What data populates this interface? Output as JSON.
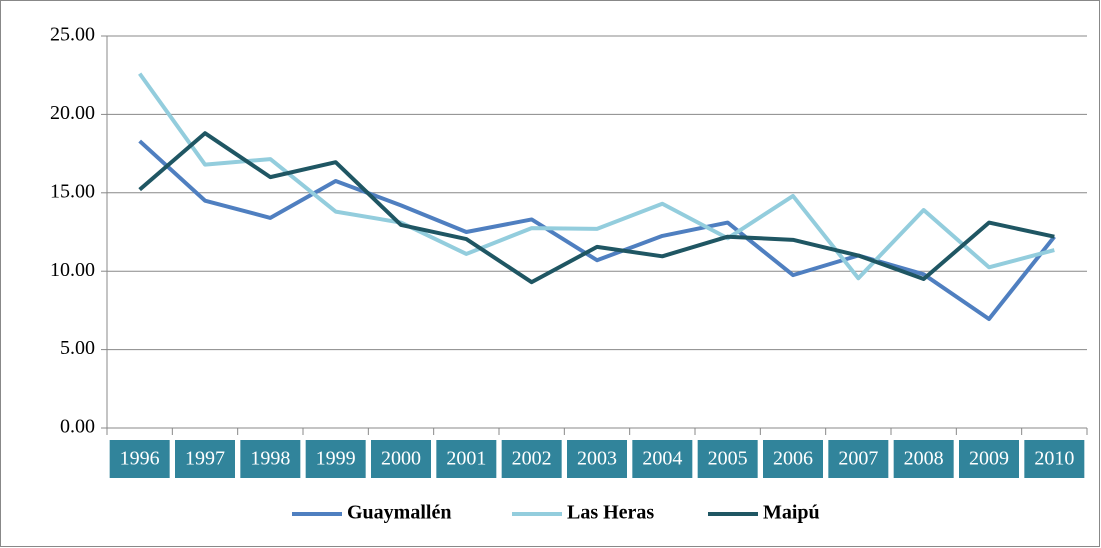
{
  "chart_data": {
    "type": "line",
    "categories": [
      "1996",
      "1997",
      "1998",
      "1999",
      "2000",
      "2001",
      "2002",
      "2003",
      "2004",
      "2005",
      "2006",
      "2007",
      "2008",
      "2009",
      "2010"
    ],
    "series": [
      {
        "name": "Guaymallén",
        "color": "#4f7fc0",
        "values": [
          18.3,
          14.5,
          13.4,
          15.75,
          14.2,
          12.5,
          13.3,
          10.7,
          12.25,
          13.1,
          9.75,
          11.0,
          9.8,
          6.95,
          12.2
        ]
      },
      {
        "name": "Las Heras",
        "color": "#93cddd",
        "values": [
          22.6,
          16.8,
          17.15,
          13.8,
          13.1,
          11.1,
          12.75,
          12.7,
          14.3,
          12.1,
          14.8,
          9.55,
          13.9,
          10.25,
          11.35
        ]
      },
      {
        "name": "Maipú",
        "color": "#1f5663",
        "values": [
          15.2,
          18.8,
          16.0,
          16.95,
          12.95,
          12.05,
          9.3,
          11.55,
          10.95,
          12.2,
          12.0,
          11.0,
          9.5,
          13.1,
          12.2
        ]
      }
    ],
    "ylim": [
      0,
      25
    ],
    "yticks": [
      {
        "value": 0,
        "label": "0.00"
      },
      {
        "value": 5,
        "label": "5.00"
      },
      {
        "value": 10,
        "label": "10.00"
      },
      {
        "value": 15,
        "label": "15.00"
      },
      {
        "value": 20,
        "label": "20.00"
      },
      {
        "value": 25,
        "label": "25.00"
      }
    ],
    "grid": true
  }
}
